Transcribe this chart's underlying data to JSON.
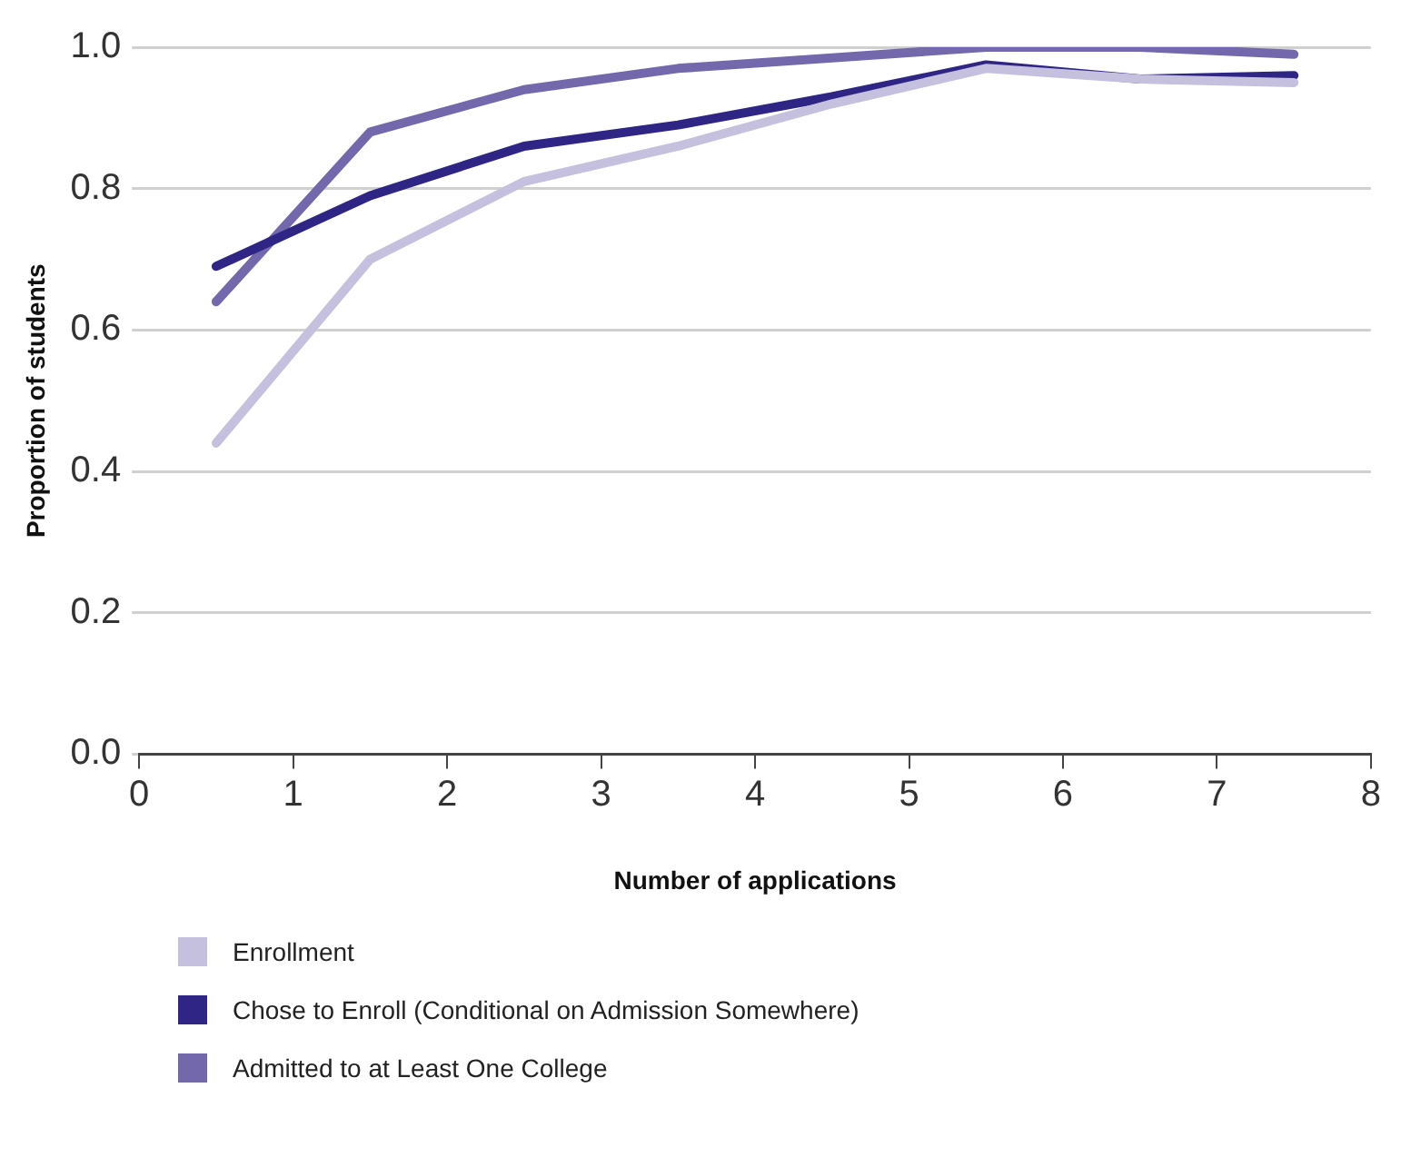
{
  "chart_data": {
    "type": "line",
    "xlabel": "Number of applications",
    "ylabel": "Proportion of students",
    "x": [
      0.5,
      1.5,
      2.5,
      3.5,
      4.5,
      5.5,
      6.5,
      7.5
    ],
    "series": [
      {
        "name": "Enrollment",
        "color": "#c5c0de",
        "values": [
          0.44,
          0.7,
          0.81,
          0.86,
          0.92,
          0.97,
          0.955,
          0.95
        ]
      },
      {
        "name": "Chose to Enroll (Conditional on Admission Somewhere)",
        "color": "#2e2585",
        "values": [
          0.69,
          0.79,
          0.86,
          0.89,
          0.93,
          0.975,
          0.955,
          0.96
        ]
      },
      {
        "name": "Admitted to at Least One College",
        "color": "#7468ad",
        "values": [
          0.64,
          0.88,
          0.94,
          0.97,
          0.985,
          1.0,
          1.0,
          0.99
        ]
      }
    ],
    "xlim": [
      0,
      8
    ],
    "xticks": [
      0,
      1,
      2,
      3,
      4,
      5,
      6,
      7,
      8
    ],
    "ylim": [
      0,
      1
    ],
    "yticks": [
      {
        "value": 0,
        "label": "0.0"
      },
      {
        "value": 0.2,
        "label": "0.2"
      },
      {
        "value": 0.4,
        "label": "0.4"
      },
      {
        "value": 0.6,
        "label": "0.6"
      },
      {
        "value": 0.8,
        "label": "0.8"
      },
      {
        "value": 1,
        "label": "1.0"
      }
    ],
    "grid": "y",
    "legend": "bottom",
    "marker": "none",
    "line_style": "solid"
  }
}
